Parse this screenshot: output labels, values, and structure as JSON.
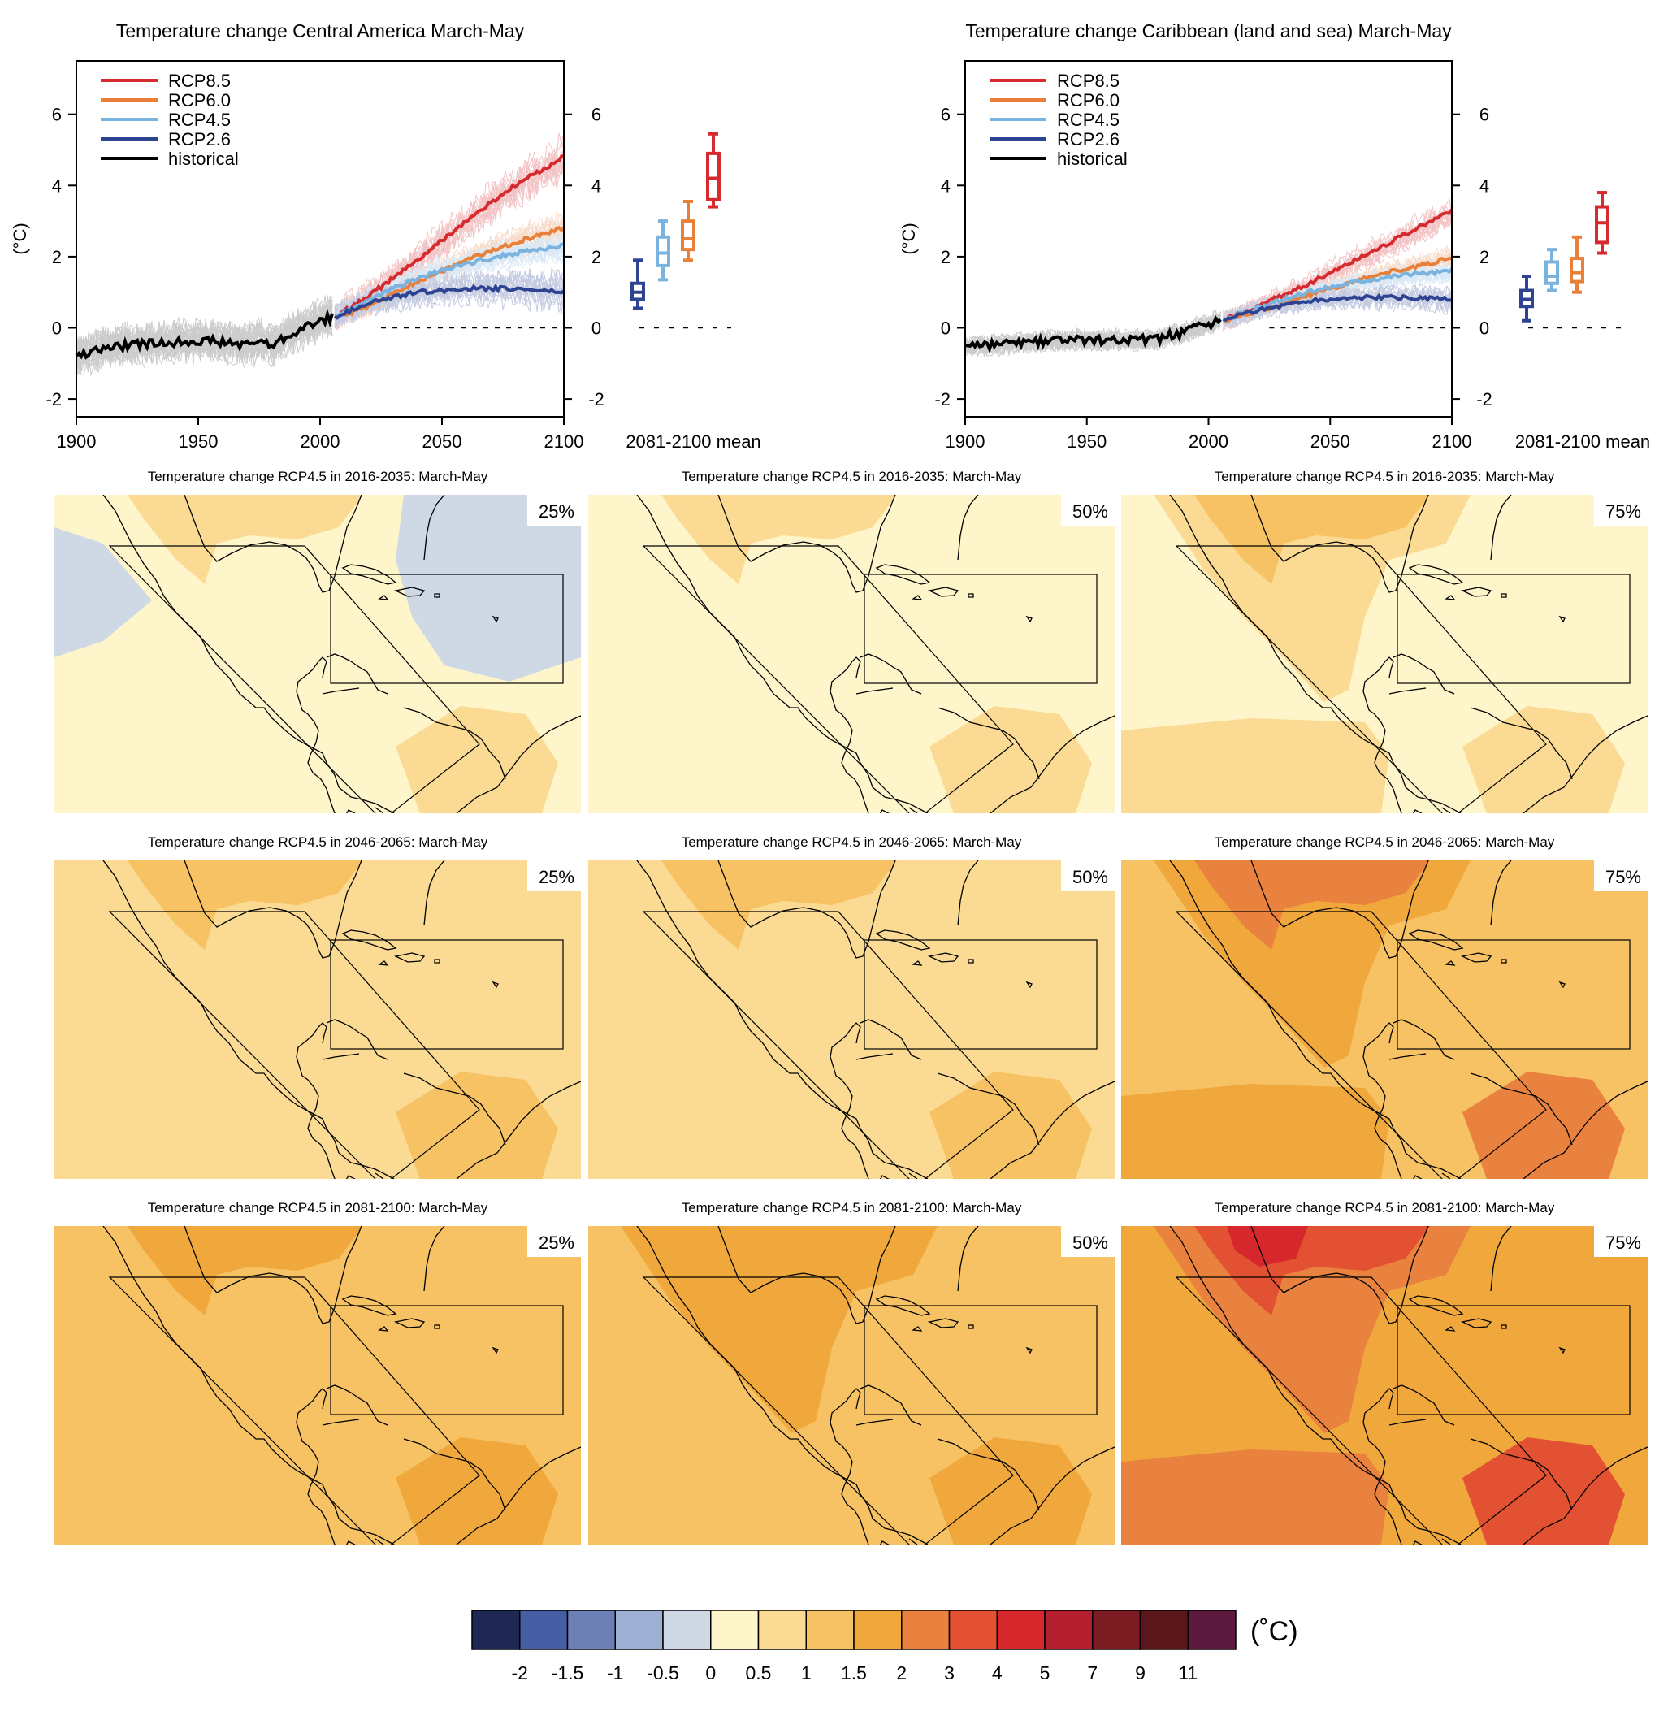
{
  "chart_data": [
    {
      "type": "line",
      "title": "Temperature change Central America March-May",
      "ylabel": "(°C)",
      "xlim": [
        1900,
        2100
      ],
      "ylim": [
        -2.5,
        7.5
      ],
      "xticks": [
        1900,
        1950,
        2000,
        2050,
        2100
      ],
      "yticks": [
        -2,
        0,
        2,
        4,
        6
      ],
      "legend_position": "top-left",
      "series": [
        {
          "name": "RCP8.5",
          "color": "#d62a2f",
          "x": [
            2006,
            2020,
            2040,
            2060,
            2080,
            2100
          ],
          "values": [
            0.3,
            0.9,
            1.9,
            3.0,
            4.0,
            4.8
          ],
          "spread": 0.7
        },
        {
          "name": "RCP6.0",
          "color": "#e8803a",
          "x": [
            2006,
            2020,
            2040,
            2060,
            2080,
            2100
          ],
          "values": [
            0.3,
            0.6,
            1.3,
            1.9,
            2.4,
            2.8
          ],
          "spread": 0.5
        },
        {
          "name": "RCP4.5",
          "color": "#7ab3de",
          "x": [
            2006,
            2020,
            2040,
            2060,
            2080,
            2100
          ],
          "values": [
            0.3,
            0.8,
            1.4,
            1.8,
            2.1,
            2.3
          ],
          "spread": 0.5
        },
        {
          "name": "RCP2.6",
          "color": "#2e4493",
          "x": [
            2006,
            2020,
            2040,
            2060,
            2080,
            2100
          ],
          "values": [
            0.3,
            0.7,
            1.0,
            1.1,
            1.1,
            1.0
          ],
          "spread": 0.6
        },
        {
          "name": "historical",
          "color": "#000000",
          "x": [
            1900,
            1910,
            1920,
            1930,
            1940,
            1950,
            1960,
            1970,
            1975,
            1980,
            1985,
            1990,
            1995,
            2000,
            2005
          ],
          "values": [
            -0.8,
            -0.6,
            -0.5,
            -0.45,
            -0.4,
            -0.35,
            -0.4,
            -0.5,
            -0.35,
            -0.5,
            -0.3,
            -0.1,
            0.05,
            0.2,
            0.3
          ],
          "spread": 0.7
        }
      ],
      "boxplots": {
        "label": "2081-2100 mean",
        "boxes": [
          {
            "series": "RCP2.6",
            "color": "#2e4493",
            "min": 0.55,
            "q1": 0.8,
            "median": 1.0,
            "q3": 1.25,
            "max": 1.9
          },
          {
            "series": "RCP4.5",
            "color": "#7ab3de",
            "min": 1.35,
            "q1": 1.75,
            "median": 2.1,
            "q3": 2.55,
            "max": 3.0
          },
          {
            "series": "RCP6.0",
            "color": "#e8803a",
            "min": 1.9,
            "q1": 2.2,
            "median": 2.5,
            "q3": 3.0,
            "max": 3.55
          },
          {
            "series": "RCP8.5",
            "color": "#d62a2f",
            "min": 3.4,
            "q1": 3.6,
            "median": 4.2,
            "q3": 4.9,
            "max": 5.45
          }
        ]
      }
    },
    {
      "type": "line",
      "title": "Temperature change Caribbean (land and sea) March-May",
      "ylabel": "(°C)",
      "xlim": [
        1900,
        2100
      ],
      "ylim": [
        -2.5,
        7.5
      ],
      "xticks": [
        1900,
        1950,
        2000,
        2050,
        2100
      ],
      "yticks": [
        -2,
        0,
        2,
        4,
        6
      ],
      "legend_position": "top-left",
      "series": [
        {
          "name": "RCP8.5",
          "color": "#d62a2f",
          "x": [
            2006,
            2020,
            2040,
            2060,
            2080,
            2100
          ],
          "values": [
            0.2,
            0.6,
            1.2,
            1.9,
            2.6,
            3.3
          ],
          "spread": 0.5
        },
        {
          "name": "RCP6.0",
          "color": "#e8803a",
          "x": [
            2006,
            2020,
            2040,
            2060,
            2080,
            2100
          ],
          "values": [
            0.2,
            0.45,
            0.9,
            1.3,
            1.65,
            1.95
          ],
          "spread": 0.35
        },
        {
          "name": "RCP4.5",
          "color": "#7ab3de",
          "x": [
            2006,
            2020,
            2040,
            2060,
            2080,
            2100
          ],
          "values": [
            0.2,
            0.55,
            1.0,
            1.3,
            1.5,
            1.6
          ],
          "spread": 0.35
        },
        {
          "name": "RCP2.6",
          "color": "#2e4493",
          "x": [
            2006,
            2020,
            2040,
            2060,
            2080,
            2100
          ],
          "values": [
            0.2,
            0.5,
            0.75,
            0.85,
            0.85,
            0.8
          ],
          "spread": 0.4
        },
        {
          "name": "historical",
          "color": "#000000",
          "x": [
            1900,
            1910,
            1920,
            1930,
            1940,
            1950,
            1960,
            1970,
            1980,
            1985,
            1990,
            1995,
            2000,
            2005
          ],
          "values": [
            -0.5,
            -0.5,
            -0.45,
            -0.4,
            -0.35,
            -0.35,
            -0.35,
            -0.35,
            -0.3,
            -0.2,
            -0.15,
            0.0,
            0.1,
            0.2
          ],
          "spread": 0.35
        }
      ],
      "boxplots": {
        "label": "2081-2100 mean",
        "boxes": [
          {
            "series": "RCP2.6",
            "color": "#2e4493",
            "min": 0.2,
            "q1": 0.6,
            "median": 0.8,
            "q3": 1.05,
            "max": 1.45
          },
          {
            "series": "RCP4.5",
            "color": "#7ab3de",
            "min": 1.05,
            "q1": 1.25,
            "median": 1.45,
            "q3": 1.85,
            "max": 2.2
          },
          {
            "series": "RCP6.0",
            "color": "#e8803a",
            "min": 1.0,
            "q1": 1.3,
            "median": 1.55,
            "q3": 1.95,
            "max": 2.55
          },
          {
            "series": "RCP8.5",
            "color": "#d62a2f",
            "min": 2.1,
            "q1": 2.4,
            "median": 2.95,
            "q3": 3.4,
            "max": 3.8
          }
        ]
      }
    },
    {
      "type": "heatmap",
      "panels": [
        {
          "title": "Temperature change RCP4.5 in 2016-2035: March-May",
          "percentile": "25%",
          "base_level": 0.5
        },
        {
          "title": "Temperature change RCP4.5 in 2016-2035: March-May",
          "percentile": "50%",
          "base_level": 0.5
        },
        {
          "title": "Temperature change RCP4.5 in 2016-2035: March-May",
          "percentile": "75%",
          "base_level": 0.5
        },
        {
          "title": "Temperature change RCP4.5 in 2046-2065: March-May",
          "percentile": "25%",
          "base_level": 1
        },
        {
          "title": "Temperature change RCP4.5 in 2046-2065: March-May",
          "percentile": "50%",
          "base_level": 1
        },
        {
          "title": "Temperature change RCP4.5 in 2046-2065: March-May",
          "percentile": "75%",
          "base_level": 1.5
        },
        {
          "title": "Temperature change RCP4.5 in 2081-2100: March-May",
          "percentile": "25%",
          "base_level": 1.5
        },
        {
          "title": "Temperature change RCP4.5 in 2081-2100: March-May",
          "percentile": "50%",
          "base_level": 1.5
        },
        {
          "title": "Temperature change RCP4.5 in 2081-2100: March-May",
          "percentile": "75%",
          "base_level": 2
        }
      ],
      "colorbar": {
        "unit": "(˚C)",
        "labels": [
          "-2",
          "-1.5",
          "-1",
          "-0.5",
          "0",
          "0.5",
          "1",
          "1.5",
          "2",
          "3",
          "4",
          "5",
          "7",
          "9",
          "11"
        ],
        "colors": [
          "#1e2852",
          "#465ea4",
          "#6d80b6",
          "#9dafd2",
          "#cfd8e5",
          "#fef5cb",
          "#fbdb94",
          "#f6c263",
          "#f0a83c",
          "#e9813f",
          "#e25131",
          "#d6282c",
          "#b31f2c",
          "#7c1b21",
          "#5a161b",
          "#5c1a3f"
        ]
      }
    }
  ]
}
